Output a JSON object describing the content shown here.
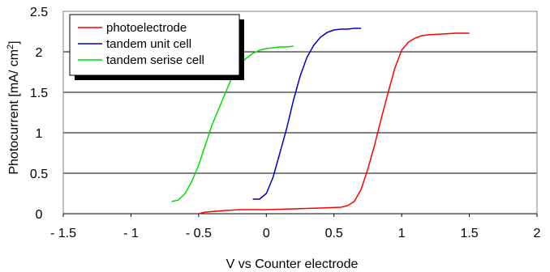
{
  "chart_data": {
    "type": "line",
    "xlabel": "V vs Counter electrode",
    "ylabel_main": "Photocurrent [mA/ cm",
    "ylabel_sup": "2",
    "ylabel_end": "]",
    "xlim": [
      -1.5,
      2
    ],
    "ylim": [
      0,
      2.5
    ],
    "x_tick_labels": [
      "- 1.5",
      "- 1",
      "- 0.5",
      "0",
      "0.5",
      "1",
      "1.5",
      "2"
    ],
    "y_tick_labels": [
      "0",
      "0.5",
      "1",
      "1.5",
      "2",
      "2.5"
    ],
    "grid": "horizontal",
    "legend_position": "top-left",
    "series": [
      {
        "name": "photoelectrode",
        "color": "#ff0000",
        "x": [
          -0.5,
          -0.45,
          -0.3,
          -0.2,
          0.0,
          0.2,
          0.4,
          0.55,
          0.6,
          0.65,
          0.7,
          0.75,
          0.8,
          0.85,
          0.9,
          0.95,
          1.0,
          1.05,
          1.1,
          1.15,
          1.2,
          1.3,
          1.4,
          1.5
        ],
        "y": [
          0.0,
          0.02,
          0.04,
          0.05,
          0.05,
          0.06,
          0.07,
          0.08,
          0.1,
          0.15,
          0.3,
          0.55,
          0.85,
          1.18,
          1.5,
          1.8,
          2.02,
          2.12,
          2.17,
          2.2,
          2.21,
          2.22,
          2.23,
          2.23
        ]
      },
      {
        "name": "tandem unit cell",
        "color": "#0000cc",
        "x": [
          -0.1,
          -0.05,
          0.0,
          0.05,
          0.1,
          0.15,
          0.2,
          0.25,
          0.3,
          0.35,
          0.4,
          0.45,
          0.5,
          0.55,
          0.6,
          0.65,
          0.7
        ],
        "y": [
          0.18,
          0.18,
          0.25,
          0.45,
          0.75,
          1.05,
          1.4,
          1.7,
          1.93,
          2.08,
          2.18,
          2.24,
          2.27,
          2.28,
          2.28,
          2.29,
          2.29
        ]
      },
      {
        "name": "tandem serise cell",
        "color": "#00dd00",
        "x": [
          -0.7,
          -0.65,
          -0.6,
          -0.55,
          -0.5,
          -0.45,
          -0.4,
          -0.35,
          -0.3,
          -0.25,
          -0.2,
          -0.15,
          -0.1,
          -0.05,
          0.0,
          0.05,
          0.1,
          0.15,
          0.2
        ],
        "y": [
          0.15,
          0.17,
          0.25,
          0.4,
          0.6,
          0.85,
          1.1,
          1.3,
          1.5,
          1.7,
          1.83,
          1.92,
          1.98,
          2.02,
          2.04,
          2.05,
          2.06,
          2.06,
          2.07
        ]
      }
    ]
  }
}
